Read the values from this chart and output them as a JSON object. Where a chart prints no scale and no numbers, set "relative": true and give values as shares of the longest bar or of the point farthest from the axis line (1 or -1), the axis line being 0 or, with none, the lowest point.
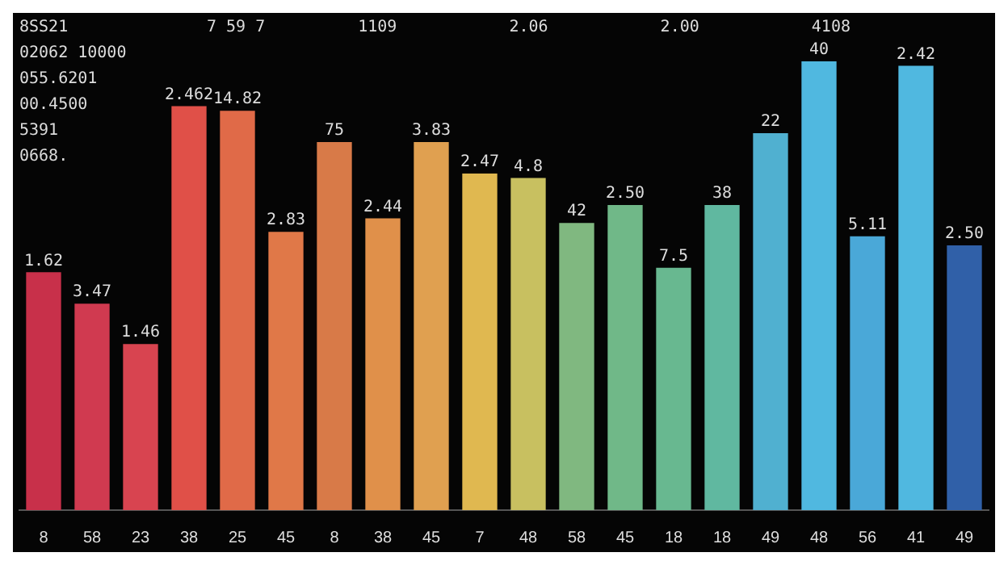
{
  "chart_data": {
    "type": "bar",
    "relative": true,
    "categories": [
      "8",
      "58",
      "23",
      "38",
      "25",
      "45",
      "8",
      "38",
      "45",
      "7",
      "48",
      "58",
      "45",
      "18",
      "18",
      "49",
      "48",
      "56",
      "41",
      "49"
    ],
    "values": [
      0.53,
      0.46,
      0.37,
      0.9,
      0.89,
      0.62,
      0.82,
      0.65,
      0.82,
      0.75,
      0.74,
      0.64,
      0.68,
      0.54,
      0.68,
      0.84,
      1,
      0.61,
      0.99,
      0.59
    ],
    "colors": [
      "#c8304a",
      "#d03a50",
      "#d84450",
      "#e05048",
      "#e06a48",
      "#e07848",
      "#d87a48",
      "#e0904a",
      "#e0a050",
      "#e0b850",
      "#c8c060",
      "#80b880",
      "#70b888",
      "#68b890",
      "#60b8a0",
      "#50b0d0",
      "#50b8e0",
      "#4aa8d8",
      "#50b8e0",
      "#3060a8"
    ],
    "annotations": [
      "8SS21",
      "02062 10000",
      "055.6201",
      "00.4500",
      "5391",
      "0668.",
      "7 59 7",
      "1109",
      "2.06",
      "2.00",
      "4108",
      "1.62",
      "3.47",
      "1.46",
      "2.462",
      "14.82",
      "2.83",
      "75",
      "2.44",
      "3.83",
      "2.47",
      "4.8",
      "42",
      "2.50",
      "7.5",
      "38",
      "22",
      "40",
      "5.11",
      "2.42",
      "2.50"
    ]
  }
}
